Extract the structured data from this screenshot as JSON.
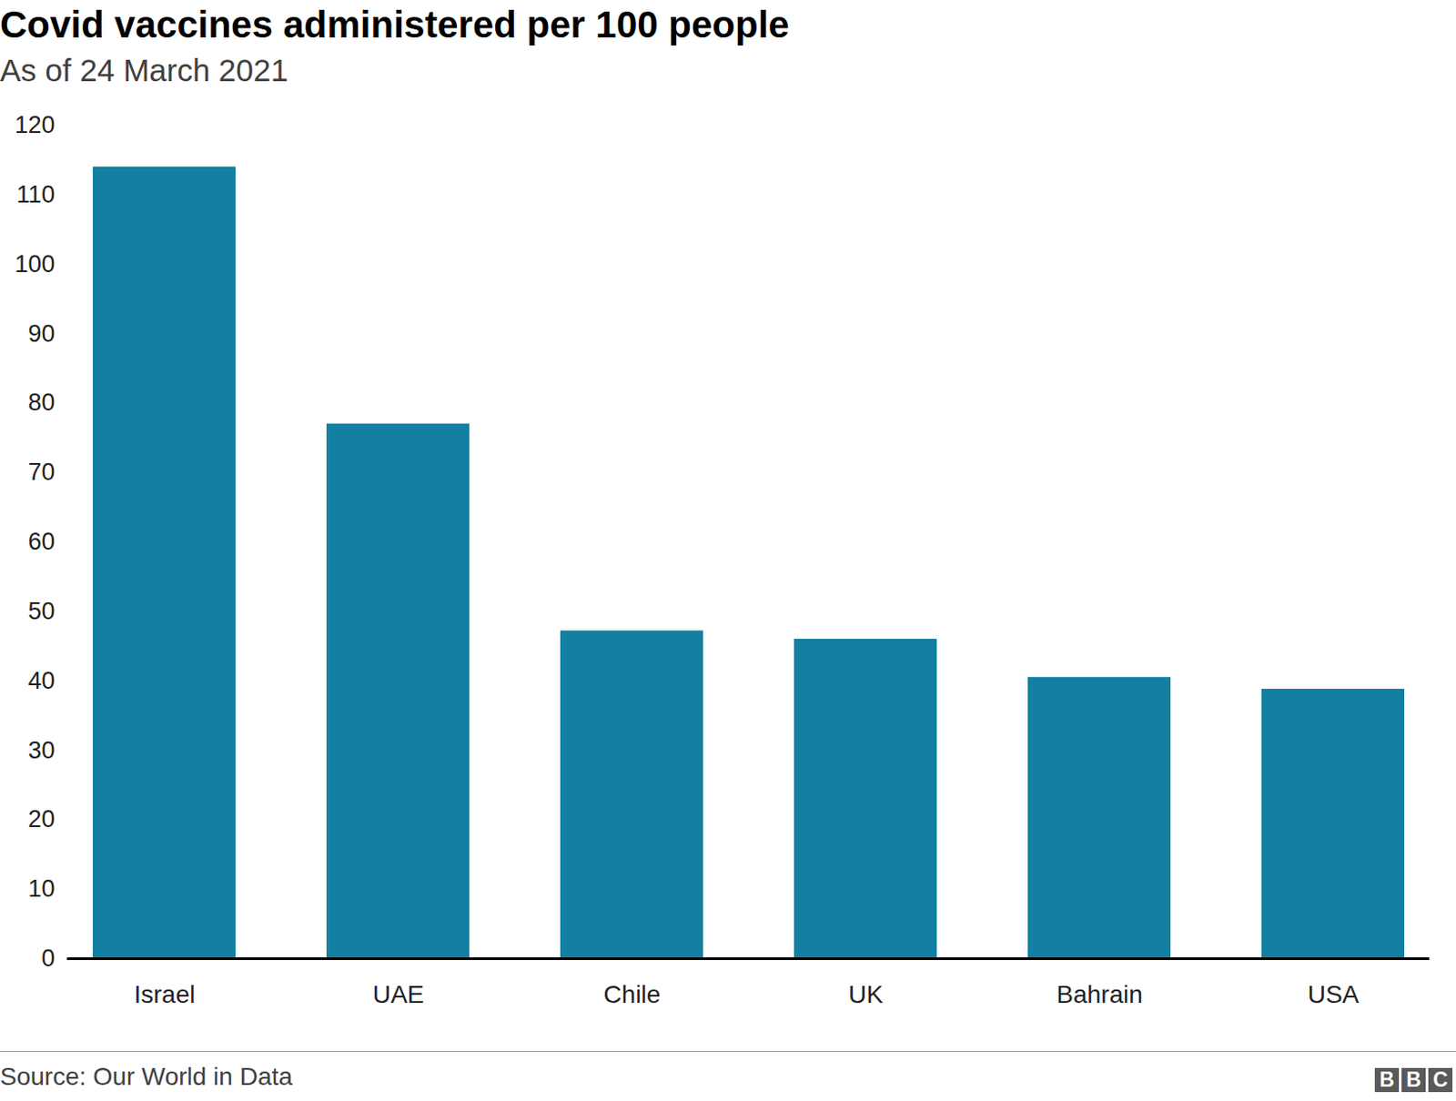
{
  "chart_data": {
    "type": "bar",
    "title": "Covid vaccines administered per 100 people",
    "subtitle": "As of 24 March 2021",
    "categories": [
      "Israel",
      "UAE",
      "Chile",
      "UK",
      "Bahrain",
      "USA"
    ],
    "values": [
      114,
      77,
      47.2,
      46,
      40.5,
      38.8
    ],
    "color": "#1380a1",
    "ylim": [
      0,
      120
    ],
    "yticks": [
      0,
      10,
      20,
      30,
      40,
      50,
      60,
      70,
      80,
      90,
      100,
      110,
      120
    ],
    "grid": false,
    "source": "Source: Our World in Data",
    "logo": "BBC"
  }
}
